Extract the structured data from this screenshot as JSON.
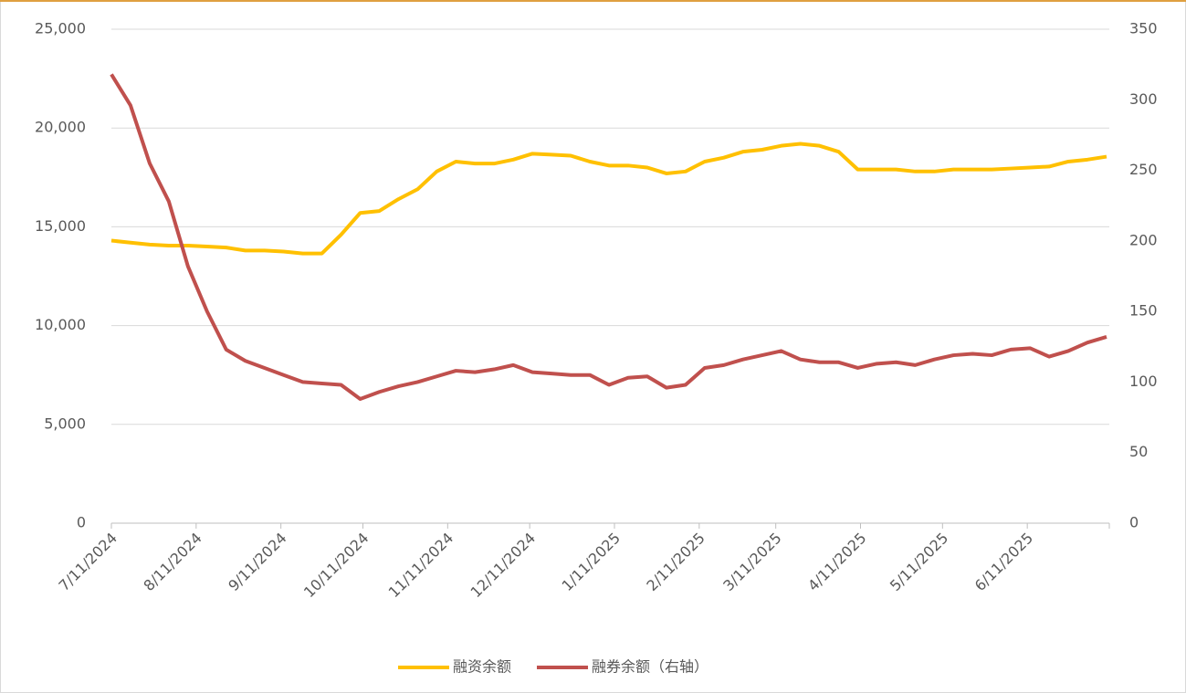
{
  "chart_data": {
    "type": "line",
    "x": [
      "2024-07-11",
      "2024-07-18",
      "2024-07-25",
      "2024-08-01",
      "2024-08-08",
      "2024-08-15",
      "2024-08-22",
      "2024-08-29",
      "2024-09-05",
      "2024-09-12",
      "2024-09-19",
      "2024-09-26",
      "2024-10-03",
      "2024-10-10",
      "2024-10-17",
      "2024-10-24",
      "2024-10-31",
      "2024-11-07",
      "2024-11-14",
      "2024-11-21",
      "2024-11-28",
      "2024-12-05",
      "2024-12-12",
      "2024-12-19",
      "2024-12-26",
      "2025-01-02",
      "2025-01-09",
      "2025-01-16",
      "2025-01-23",
      "2025-01-30",
      "2025-02-06",
      "2025-02-13",
      "2025-02-20",
      "2025-02-27",
      "2025-03-06",
      "2025-03-13",
      "2025-03-20",
      "2025-03-27",
      "2025-04-03",
      "2025-04-10",
      "2025-04-17",
      "2025-04-24",
      "2025-05-01",
      "2025-05-08",
      "2025-05-15",
      "2025-05-22",
      "2025-05-29",
      "2025-06-05",
      "2025-06-12",
      "2025-06-19",
      "2025-06-26",
      "2025-07-03",
      "2025-07-10"
    ],
    "series": [
      {
        "name": "融资余额",
        "color": "#ffc000",
        "axis": "y",
        "values": [
          14300,
          14200,
          14100,
          14050,
          14050,
          14000,
          13950,
          13800,
          13800,
          13750,
          13650,
          13650,
          14600,
          15700,
          15800,
          16400,
          16900,
          17800,
          18300,
          18200,
          18200,
          18400,
          18700,
          18650,
          18600,
          18300,
          18100,
          18100,
          18000,
          17700,
          17800,
          18300,
          18500,
          18800,
          18900,
          19100,
          19200,
          19100,
          18800,
          17900,
          17900,
          17900,
          17800,
          17800,
          17900,
          17900,
          17900,
          17950,
          18000,
          18050,
          18300,
          18400,
          18550
        ]
      },
      {
        "name": "融券余额（右轴）",
        "color": "#c0504d",
        "axis": "y2",
        "values": [
          318,
          296,
          255,
          228,
          182,
          150,
          123,
          115,
          110,
          105,
          100,
          99,
          98,
          88,
          93,
          97,
          100,
          104,
          108,
          107,
          109,
          112,
          107,
          106,
          105,
          105,
          98,
          103,
          104,
          96,
          98,
          110,
          112,
          116,
          119,
          122,
          116,
          114,
          114,
          110,
          113,
          114,
          112,
          116,
          119,
          120,
          119,
          123,
          124,
          118,
          122,
          128,
          132
        ]
      }
    ],
    "xlim": [
      "2024-07-11",
      "2025-07-11"
    ],
    "xticks": [
      {
        "value": "2024-07-11",
        "label": "7/11/2024"
      },
      {
        "value": "2024-08-11",
        "label": "8/11/2024"
      },
      {
        "value": "2024-09-11",
        "label": "9/11/2024"
      },
      {
        "value": "2024-10-11",
        "label": "10/11/2024"
      },
      {
        "value": "2024-11-11",
        "label": "11/11/2024"
      },
      {
        "value": "2024-12-11",
        "label": "12/11/2024"
      },
      {
        "value": "2025-01-11",
        "label": "1/11/2025"
      },
      {
        "value": "2025-02-11",
        "label": "2/11/2025"
      },
      {
        "value": "2025-03-11",
        "label": "3/11/2025"
      },
      {
        "value": "2025-04-11",
        "label": "4/11/2025"
      },
      {
        "value": "2025-05-11",
        "label": "5/11/2025"
      },
      {
        "value": "2025-06-11",
        "label": "6/11/2025"
      }
    ],
    "ylim": [
      0,
      25000
    ],
    "yticks": [
      0,
      {
        "value": 5000,
        "label": "5,000"
      },
      {
        "value": 10000,
        "label": "10,000"
      },
      {
        "value": 15000,
        "label": "15,000"
      },
      {
        "value": 20000,
        "label": "20,000"
      },
      {
        "value": 25000,
        "label": "25,000"
      }
    ],
    "y2lim": [
      0,
      350
    ],
    "y2ticks": [
      0,
      50,
      100,
      150,
      200,
      250,
      300,
      350
    ],
    "grid": true,
    "legend": "bottom"
  }
}
